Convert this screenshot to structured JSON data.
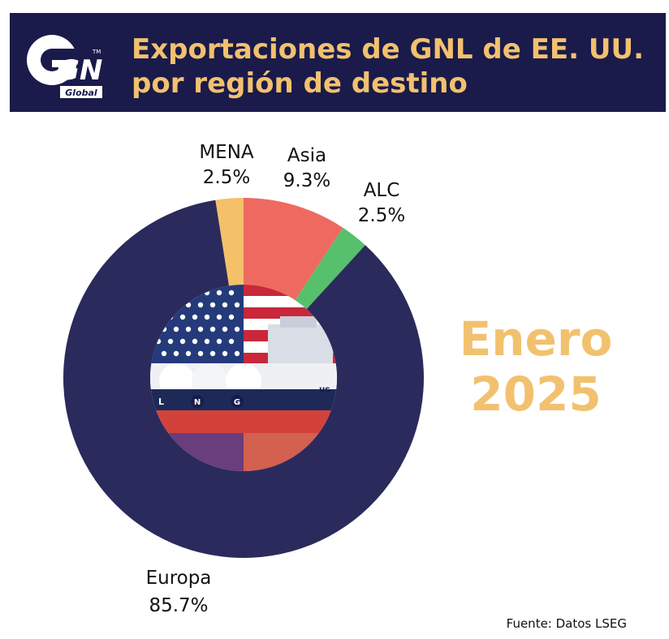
{
  "header": {
    "title_line1": "Exportaciones de GNL de EE. UU.",
    "title_line2": "por región de destino",
    "logo_text": "GN",
    "logo_subtext": "Global",
    "logo_tm": "TM",
    "bg_color": "#1a1b4b",
    "title_color": "#f2c16f"
  },
  "chart_data": {
    "type": "pie",
    "labels": [
      "MENA",
      "Asia",
      "ALC",
      "Europa"
    ],
    "values": [
      2.5,
      9.3,
      2.5,
      85.7
    ],
    "display_values": [
      "2.5%",
      "9.3%",
      "2.5%",
      "85.7%"
    ],
    "colors": [
      "#f4c169",
      "#ee6a60",
      "#57c06c",
      "#2b2a5c"
    ],
    "title": "Exportaciones de GNL de EE. UU. por región de destino"
  },
  "center_image": {
    "icon": "lng-tanker-us-flag-image",
    "ship_letters": [
      "L",
      "N",
      "G"
    ],
    "ship_mark": "US"
  },
  "period": {
    "line1": "Enero",
    "line2": "2025"
  },
  "source": "Fuente: Datos LSEG"
}
